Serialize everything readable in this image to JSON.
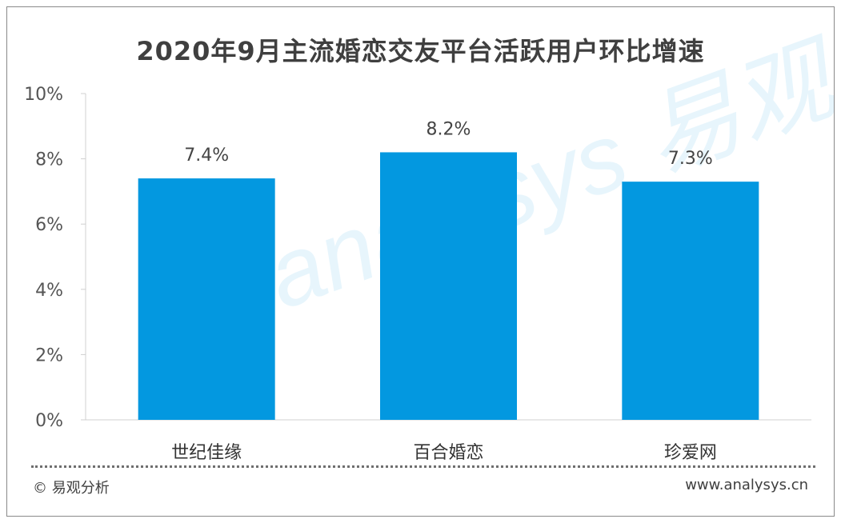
{
  "chart_data": {
    "type": "bar",
    "title": "2020年9月主流婚恋交友平台活跃用户环比增速",
    "categories": [
      "世纪佳缘",
      "百合婚恋",
      "珍爱网"
    ],
    "values": [
      7.4,
      8.2,
      7.3
    ],
    "value_labels": [
      "7.4%",
      "8.2%",
      "7.3%"
    ],
    "ylim": [
      0,
      10
    ],
    "yticks": [
      0,
      2,
      4,
      6,
      8,
      10
    ],
    "ytick_labels": [
      "0%",
      "2%",
      "4%",
      "6%",
      "8%",
      "10%"
    ],
    "xlabel": "",
    "ylabel": "",
    "grid": false,
    "bar_color": "#0398e0"
  },
  "footer": {
    "source": "© 易观分析",
    "website": "www.analysys.cn"
  },
  "watermark": {
    "text": "analysys 易观分析"
  }
}
